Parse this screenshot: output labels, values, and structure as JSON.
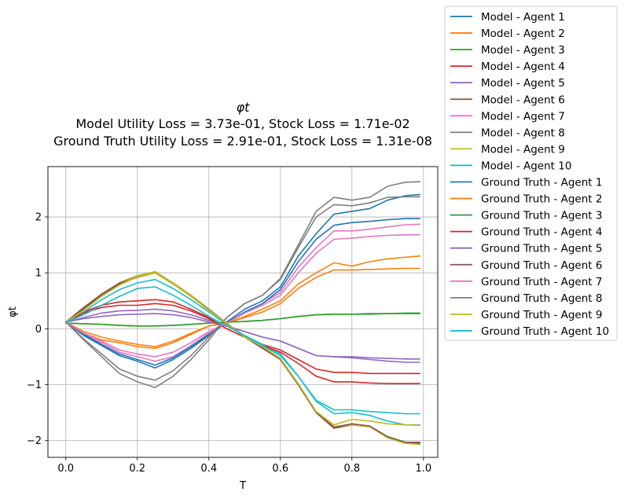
{
  "chart_data": {
    "type": "line",
    "title": "φt",
    "subtitle_lines": [
      "Model Utility Loss = 3.73e-01, Stock Loss = 1.71e-02",
      "Ground Truth Utility Loss = 2.91e-01, Stock Loss = 1.31e-08"
    ],
    "xlabel": "T",
    "ylabel": "φt",
    "xlim": [
      -0.05,
      1.04
    ],
    "ylim": [
      -2.3,
      2.9
    ],
    "xticks": [
      0.0,
      0.2,
      0.4,
      0.6,
      0.8,
      1.0
    ],
    "xtick_labels": [
      "0.0",
      "0.2",
      "0.4",
      "0.6",
      "0.8",
      "1.0"
    ],
    "yticks": [
      -2,
      -1,
      0,
      1,
      2
    ],
    "ytick_labels": [
      "−2",
      "−1",
      "0",
      "1",
      "2"
    ],
    "grid": true,
    "legend_position": "outside-right",
    "x": [
      0.0,
      0.05,
      0.1,
      0.15,
      0.2,
      0.25,
      0.3,
      0.35,
      0.4,
      0.45,
      0.5,
      0.55,
      0.6,
      0.65,
      0.7,
      0.75,
      0.8,
      0.85,
      0.9,
      0.95,
      0.99
    ],
    "series": [
      {
        "name": "Model - Agent 1",
        "color": "#1f77b4",
        "values": [
          0.12,
          -0.12,
          -0.3,
          -0.48,
          -0.58,
          -0.7,
          -0.55,
          -0.35,
          -0.12,
          0.12,
          0.35,
          0.5,
          0.75,
          1.3,
          1.7,
          2.05,
          2.1,
          2.15,
          2.3,
          2.38,
          2.4
        ]
      },
      {
        "name": "Model - Agent 2",
        "color": "#ff7f0e",
        "values": [
          0.12,
          -0.08,
          -0.2,
          -0.25,
          -0.32,
          -0.35,
          -0.25,
          -0.1,
          0.05,
          0.1,
          0.22,
          0.35,
          0.5,
          0.8,
          1.0,
          1.18,
          1.12,
          1.2,
          1.25,
          1.28,
          1.3
        ]
      },
      {
        "name": "Model - Agent 3",
        "color": "#2ca02c",
        "values": [
          0.1,
          0.09,
          0.08,
          0.06,
          0.05,
          0.05,
          0.06,
          0.08,
          0.1,
          0.12,
          0.13,
          0.15,
          0.18,
          0.22,
          0.25,
          0.26,
          0.26,
          0.26,
          0.27,
          0.28,
          0.28
        ]
      },
      {
        "name": "Model - Agent 4",
        "color": "#d62728",
        "values": [
          0.12,
          0.3,
          0.42,
          0.48,
          0.5,
          0.52,
          0.48,
          0.35,
          0.2,
          0.0,
          -0.15,
          -0.28,
          -0.38,
          -0.55,
          -0.72,
          -0.78,
          -0.78,
          -0.8,
          -0.8,
          -0.8,
          -0.8
        ]
      },
      {
        "name": "Model - Agent 5",
        "color": "#9467bd",
        "values": [
          0.12,
          0.2,
          0.28,
          0.32,
          0.33,
          0.35,
          0.32,
          0.25,
          0.15,
          0.05,
          -0.05,
          -0.15,
          -0.22,
          -0.35,
          -0.48,
          -0.5,
          -0.5,
          -0.52,
          -0.53,
          -0.54,
          -0.54
        ]
      },
      {
        "name": "Model - Agent 6",
        "color": "#8c564b",
        "values": [
          0.12,
          0.38,
          0.62,
          0.82,
          0.95,
          1.02,
          0.82,
          0.6,
          0.35,
          0.1,
          -0.15,
          -0.35,
          -0.55,
          -1.0,
          -1.5,
          -1.78,
          -1.72,
          -1.75,
          -1.95,
          -2.05,
          -2.05
        ]
      },
      {
        "name": "Model - Agent 7",
        "color": "#e377c2",
        "values": [
          0.12,
          -0.1,
          -0.25,
          -0.42,
          -0.5,
          -0.58,
          -0.5,
          -0.3,
          -0.08,
          0.1,
          0.3,
          0.45,
          0.65,
          1.1,
          1.45,
          1.75,
          1.75,
          1.78,
          1.82,
          1.86,
          1.87
        ]
      },
      {
        "name": "Model - Agent 8",
        "color": "#7f7f7f",
        "values": [
          0.12,
          -0.2,
          -0.5,
          -0.8,
          -0.95,
          -1.05,
          -0.85,
          -0.55,
          -0.2,
          0.2,
          0.45,
          0.6,
          0.9,
          1.5,
          2.1,
          2.35,
          2.3,
          2.35,
          2.55,
          2.62,
          2.63
        ]
      },
      {
        "name": "Model - Agent 9",
        "color": "#bcbd22",
        "values": [
          0.12,
          0.35,
          0.6,
          0.8,
          0.95,
          1.02,
          0.82,
          0.6,
          0.35,
          0.1,
          -0.15,
          -0.33,
          -0.55,
          -1.0,
          -1.5,
          -1.75,
          -1.72,
          -1.75,
          -1.95,
          -2.05,
          -2.07
        ]
      },
      {
        "name": "Model - Agent 10",
        "color": "#17becf",
        "values": [
          0.12,
          0.3,
          0.52,
          0.7,
          0.82,
          0.88,
          0.72,
          0.52,
          0.3,
          0.08,
          -0.12,
          -0.28,
          -0.45,
          -0.85,
          -1.3,
          -1.52,
          -1.5,
          -1.55,
          -1.65,
          -1.72,
          -1.72
        ]
      },
      {
        "name": "Ground Truth - Agent 1",
        "color": "#1f77b4",
        "values": [
          0.12,
          -0.1,
          -0.28,
          -0.45,
          -0.55,
          -0.65,
          -0.52,
          -0.32,
          -0.1,
          0.1,
          0.3,
          0.45,
          0.7,
          1.2,
          1.6,
          1.85,
          1.9,
          1.92,
          1.95,
          1.97,
          1.97
        ]
      },
      {
        "name": "Ground Truth - Agent 2",
        "color": "#ff7f0e",
        "values": [
          0.12,
          -0.05,
          -0.15,
          -0.22,
          -0.28,
          -0.32,
          -0.22,
          -0.08,
          0.05,
          0.1,
          0.2,
          0.3,
          0.45,
          0.72,
          0.92,
          1.05,
          1.05,
          1.06,
          1.07,
          1.08,
          1.08
        ]
      },
      {
        "name": "Ground Truth - Agent 3",
        "color": "#2ca02c",
        "values": [
          0.1,
          0.09,
          0.08,
          0.06,
          0.05,
          0.05,
          0.06,
          0.08,
          0.1,
          0.12,
          0.13,
          0.15,
          0.18,
          0.22,
          0.25,
          0.26,
          0.26,
          0.27,
          0.27,
          0.27,
          0.27
        ]
      },
      {
        "name": "Ground Truth - Agent 4",
        "color": "#d62728",
        "values": [
          0.12,
          0.28,
          0.38,
          0.42,
          0.42,
          0.45,
          0.42,
          0.32,
          0.18,
          0.0,
          -0.15,
          -0.3,
          -0.42,
          -0.62,
          -0.85,
          -0.95,
          -0.95,
          -0.97,
          -0.98,
          -0.98,
          -0.98
        ]
      },
      {
        "name": "Ground Truth - Agent 5",
        "color": "#9467bd",
        "values": [
          0.12,
          0.18,
          0.22,
          0.25,
          0.26,
          0.27,
          0.25,
          0.2,
          0.12,
          0.05,
          -0.05,
          -0.15,
          -0.22,
          -0.35,
          -0.48,
          -0.5,
          -0.52,
          -0.55,
          -0.58,
          -0.6,
          -0.6
        ]
      },
      {
        "name": "Ground Truth - Agent 6",
        "color": "#8c564b",
        "values": [
          0.12,
          0.36,
          0.6,
          0.8,
          0.92,
          1.0,
          0.8,
          0.58,
          0.34,
          0.1,
          -0.15,
          -0.34,
          -0.55,
          -1.0,
          -1.5,
          -1.76,
          -1.7,
          -1.74,
          -1.93,
          -2.03,
          -2.03
        ]
      },
      {
        "name": "Ground Truth - Agent 7",
        "color": "#e377c2",
        "values": [
          0.12,
          -0.08,
          -0.22,
          -0.38,
          -0.45,
          -0.5,
          -0.42,
          -0.25,
          -0.05,
          0.1,
          0.28,
          0.42,
          0.6,
          1.0,
          1.35,
          1.6,
          1.62,
          1.65,
          1.67,
          1.68,
          1.68
        ]
      },
      {
        "name": "Ground Truth - Agent 8",
        "color": "#7f7f7f",
        "values": [
          0.12,
          -0.18,
          -0.45,
          -0.72,
          -0.85,
          -0.92,
          -0.75,
          -0.48,
          -0.15,
          0.2,
          0.45,
          0.6,
          0.88,
          1.45,
          2.0,
          2.22,
          2.2,
          2.25,
          2.35,
          2.36,
          2.36
        ]
      },
      {
        "name": "Ground Truth - Agent 9",
        "color": "#bcbd22",
        "values": [
          0.12,
          0.33,
          0.58,
          0.78,
          0.93,
          1.0,
          0.8,
          0.58,
          0.33,
          0.1,
          -0.15,
          -0.32,
          -0.53,
          -0.98,
          -1.48,
          -1.72,
          -1.62,
          -1.65,
          -1.7,
          -1.72,
          -1.73
        ]
      },
      {
        "name": "Ground Truth - Agent 10",
        "color": "#17becf",
        "values": [
          0.12,
          0.25,
          0.42,
          0.58,
          0.72,
          0.75,
          0.6,
          0.42,
          0.22,
          0.05,
          -0.12,
          -0.3,
          -0.48,
          -0.85,
          -1.28,
          -1.45,
          -1.45,
          -1.48,
          -1.5,
          -1.52,
          -1.52
        ]
      }
    ]
  }
}
